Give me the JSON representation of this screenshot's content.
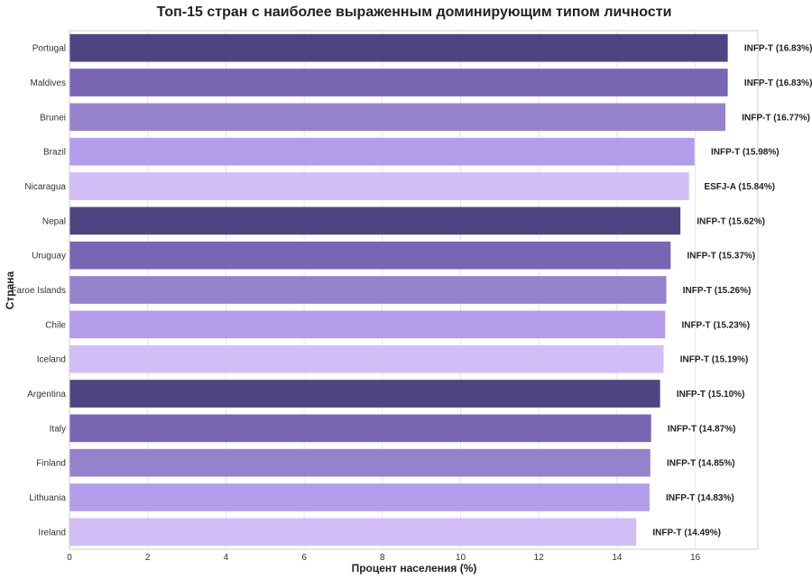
{
  "chart_data": {
    "type": "bar",
    "orientation": "horizontal",
    "title": "Топ-15 стран с наиболее выраженным доминирующим типом личности",
    "xlabel": "Процент населения (%)",
    "ylabel": "Страна",
    "xlim": [
      0,
      17.6
    ],
    "xticks": [
      0,
      2,
      4,
      6,
      8,
      10,
      12,
      14,
      16
    ],
    "grid": true,
    "categories": [
      "Portugal",
      "Maldives",
      "Brunei",
      "Brazil",
      "Nicaragua",
      "Nepal",
      "Uruguay",
      "Faroe Islands",
      "Chile",
      "Iceland",
      "Argentina",
      "Italy",
      "Finland",
      "Lithuania",
      "Ireland"
    ],
    "values": [
      16.83,
      16.83,
      16.77,
      15.98,
      15.84,
      15.62,
      15.37,
      15.26,
      15.23,
      15.19,
      15.1,
      14.87,
      14.85,
      14.83,
      14.49
    ],
    "labels": [
      "INFP-T (16.83%)",
      "INFP-T (16.83%)",
      "INFP-T (16.77%)",
      "INFP-T (15.98%)",
      "ESFJ-A (15.84%)",
      "INFP-T (15.62%)",
      "INFP-T (15.37%)",
      "INFP-T (15.26%)",
      "INFP-T (15.23%)",
      "INFP-T (15.19%)",
      "INFP-T (15.10%)",
      "INFP-T (14.87%)",
      "INFP-T (14.85%)",
      "INFP-T (14.83%)",
      "INFP-T (14.49%)"
    ],
    "palette": [
      "#4f4482",
      "#7866b2",
      "#9582cc",
      "#b39deb",
      "#d3bdf6"
    ]
  }
}
